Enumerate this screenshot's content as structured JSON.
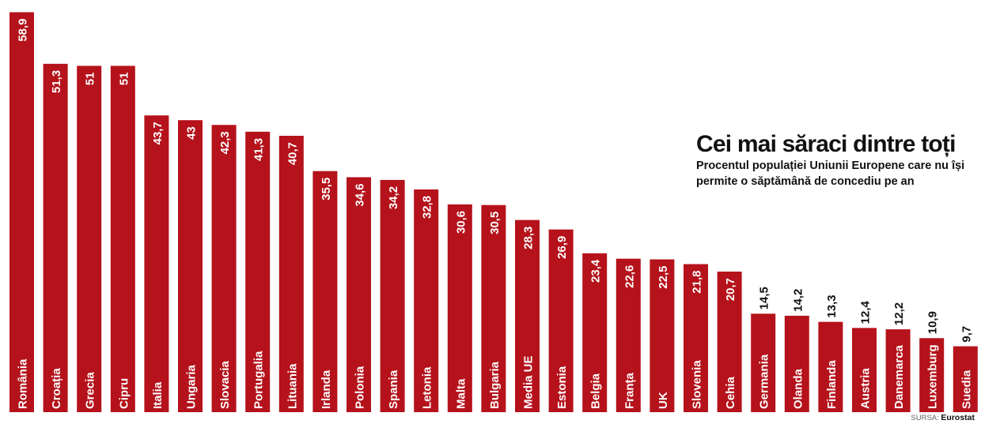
{
  "chart_data": {
    "type": "bar",
    "title": "Cei mai săraci dintre toți",
    "subtitle": "Procentul populației Uniunii Europene care nu își permite o săptămână de concediu pe an",
    "categories": [
      "România",
      "Croația",
      "Grecia",
      "Cipru",
      "Italia",
      "Ungaria",
      "Slovacia",
      "Portugalia",
      "Lituania",
      "Irlanda",
      "Polonia",
      "Spania",
      "Letonia",
      "Malta",
      "Bulgaria",
      "Media UE",
      "Estonia",
      "Belgia",
      "Franța",
      "UK",
      "Slovenia",
      "Cehia",
      "Germania",
      "Olanda",
      "Finlanda",
      "Austria",
      "Danemarca",
      "Luxemburg",
      "Suedia"
    ],
    "values": [
      58.9,
      51.3,
      51,
      51,
      43.7,
      43,
      42.3,
      41.3,
      40.7,
      35.5,
      34.6,
      34.2,
      32.8,
      30.6,
      30.5,
      28.3,
      26.9,
      23.4,
      22.6,
      22.5,
      21.8,
      20.7,
      14.5,
      14.2,
      13.3,
      12.4,
      12.2,
      10.9,
      9.7
    ],
    "value_labels": [
      "58,9",
      "51,3",
      "51",
      "51",
      "43,7",
      "43",
      "42,3",
      "41,3",
      "40,7",
      "35,5",
      "34,6",
      "34,2",
      "32,8",
      "30,6",
      "30,5",
      "28,3",
      "26,9",
      "23,4",
      "22,6",
      "22,5",
      "21,8",
      "20,7",
      "14,5",
      "14,2",
      "13,3",
      "12,4",
      "12,2",
      "10,9",
      "9,7"
    ],
    "xlabel": "",
    "ylabel": "",
    "ylim": [
      0,
      60
    ],
    "grid": false,
    "legend": "none",
    "bar_color": "#b5121b",
    "label_color": "#ffffff"
  },
  "source": {
    "prefix": "SURSA:",
    "name": "Eurostat"
  }
}
